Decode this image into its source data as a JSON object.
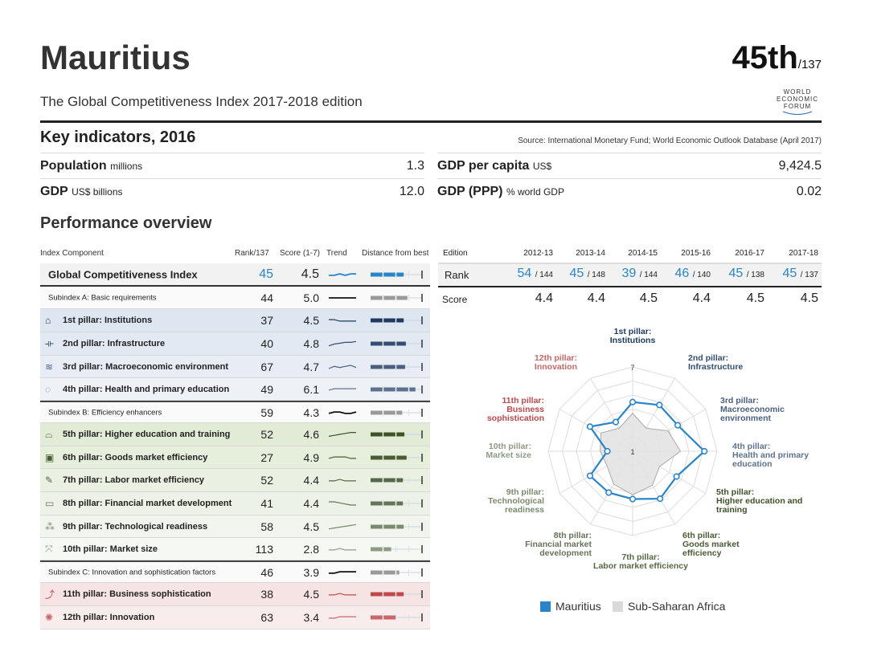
{
  "header": {
    "country": "Mauritius",
    "rank": "45th",
    "rank_total": "/137",
    "edition": "The Global Competitiveness Index 2017-2018 edition",
    "logo_text": [
      "WORLD",
      "ECONOMIC",
      "FORUM"
    ]
  },
  "key_indicators": {
    "title": "Key indicators, 2016",
    "source": "Source: International Monetary Fund; World Economic Outlook Database (April 2017)",
    "items": [
      {
        "label": "Population",
        "unit": "millions",
        "value": "1.3"
      },
      {
        "label": "GDP per capita",
        "unit": "US$",
        "value": "9,424.5"
      },
      {
        "label": "GDP",
        "unit": "US$ billions",
        "value": "12.0"
      },
      {
        "label": "GDP (PPP)",
        "unit": "% world GDP",
        "value": "0.02"
      }
    ]
  },
  "performance": {
    "title": "Performance overview",
    "columns": [
      "Index Component",
      "Rank/137",
      "Score (1-7)",
      "Trend",
      "Distance from best"
    ],
    "rows": [
      {
        "type": "gci",
        "label": "Global Competitiveness Index",
        "rank": "45",
        "score": "4.5",
        "color": "#2a85c8",
        "bg": "#f2f2f2",
        "trend": [
          4.4,
          4.4,
          4.5,
          4.4,
          4.5,
          4.5
        ]
      },
      {
        "type": "sub",
        "label": "Subindex A: Basic requirements",
        "rank": "44",
        "score": "5.0",
        "color": "#9a9a9a",
        "bg": "#fafafa",
        "trend": [
          5.0,
          5.0,
          5.0,
          5.0,
          5.0,
          5.0
        ],
        "line": "#111"
      },
      {
        "type": "pillar",
        "icon": "institutions-icon",
        "glyph": "⌂",
        "label": "1st pillar: Institutions",
        "rank": "37",
        "score": "4.5",
        "color": "#1f3a60",
        "bg": "#dde6f1",
        "trend": [
          4.6,
          4.6,
          4.5,
          4.5,
          4.5,
          4.5
        ]
      },
      {
        "type": "pillar",
        "icon": "infrastructure-icon",
        "glyph": "⟛",
        "label": "2nd pillar: Infrastructure",
        "rank": "40",
        "score": "4.8",
        "color": "#344d73",
        "bg": "#e2e9f3",
        "trend": [
          4.3,
          4.5,
          4.6,
          4.7,
          4.7,
          4.8
        ]
      },
      {
        "type": "pillar",
        "icon": "macroeconomic-icon",
        "glyph": "≋",
        "label": "3rd pillar: Macroeconomic environment",
        "rank": "67",
        "score": "4.7",
        "color": "#4a5f80",
        "bg": "#e8edf5",
        "trend": [
          4.6,
          4.8,
          4.7,
          4.8,
          4.9,
          4.7
        ]
      },
      {
        "type": "pillar",
        "icon": "health-icon",
        "glyph": "◌",
        "label": "4th pillar: Health and primary education",
        "rank": "49",
        "score": "6.1",
        "color": "#5d7290",
        "bg": "#eef2f7",
        "trend": [
          6.0,
          6.1,
          6.1,
          6.1,
          6.1,
          6.1
        ]
      },
      {
        "type": "sub",
        "label": "Subindex B: Efficiency enhancers",
        "rank": "59",
        "score": "4.3",
        "color": "#9a9a9a",
        "bg": "#fafafa",
        "trend": [
          4.2,
          4.3,
          4.3,
          4.2,
          4.2,
          4.3
        ],
        "line": "#111"
      },
      {
        "type": "pillar",
        "icon": "education-icon",
        "glyph": "⌓",
        "label": "5th pillar: Higher education and training",
        "rank": "52",
        "score": "4.6",
        "color": "#3d5226",
        "bg": "#e2ebd6",
        "trend": [
          4.2,
          4.3,
          4.4,
          4.5,
          4.6,
          4.6
        ]
      },
      {
        "type": "pillar",
        "icon": "goods-market-icon",
        "glyph": "▣",
        "label": "6th pillar: Goods market efficiency",
        "rank": "27",
        "score": "4.9",
        "color": "#485c33",
        "bg": "#e6eedc",
        "trend": [
          4.9,
          5.0,
          5.0,
          5.0,
          4.9,
          4.9
        ]
      },
      {
        "type": "pillar",
        "icon": "labor-market-icon",
        "glyph": "✎",
        "label": "7th pillar: Labor market efficiency",
        "rank": "52",
        "score": "4.4",
        "color": "#566845",
        "bg": "#eaf0e2",
        "trend": [
          4.4,
          4.4,
          4.5,
          4.4,
          4.4,
          4.4
        ]
      },
      {
        "type": "pillar",
        "icon": "financial-market-icon",
        "glyph": "▭",
        "label": "8th pillar: Financial market development",
        "rank": "41",
        "score": "4.4",
        "color": "#65745a",
        "bg": "#edf2e7",
        "trend": [
          4.7,
          4.7,
          4.6,
          4.5,
          4.4,
          4.4
        ]
      },
      {
        "type": "pillar",
        "icon": "technology-icon",
        "glyph": "⁂",
        "label": "9th pillar: Technological readiness",
        "rank": "58",
        "score": "4.5",
        "color": "#7b8a6c",
        "bg": "#f1f5ed",
        "trend": [
          4.0,
          4.1,
          4.2,
          4.3,
          4.4,
          4.5
        ]
      },
      {
        "type": "pillar",
        "icon": "market-size-icon",
        "glyph": "⤧",
        "label": "10th pillar: Market size",
        "rank": "113",
        "score": "2.8",
        "color": "#8e9b83",
        "bg": "#f6f8f3",
        "trend": [
          2.8,
          2.8,
          2.9,
          2.8,
          2.8,
          2.8
        ]
      },
      {
        "type": "sub",
        "label": "Subindex C: Innovation and sophistication factors",
        "rank": "46",
        "score": "3.9",
        "color": "#9a9a9a",
        "bg": "#fafafa",
        "trend": [
          3.8,
          3.8,
          3.9,
          3.9,
          3.9,
          3.9
        ],
        "line": "#111"
      },
      {
        "type": "pillar",
        "icon": "business-icon",
        "glyph": "⤴",
        "label": "11th pillar: Business sophistication",
        "rank": "38",
        "score": "4.5",
        "color": "#c0474a",
        "bg": "#f6e3e3",
        "trend": [
          4.5,
          4.5,
          4.6,
          4.5,
          4.5,
          4.5
        ]
      },
      {
        "type": "pillar",
        "icon": "innovation-icon",
        "glyph": "✺",
        "label": "12th pillar: Innovation",
        "rank": "63",
        "score": "3.4",
        "color": "#c96668",
        "bg": "#f9ecec",
        "trend": [
          3.3,
          3.3,
          3.4,
          3.4,
          3.4,
          3.4
        ]
      }
    ]
  },
  "editions": {
    "header": "Edition",
    "columns": [
      "2012-13",
      "2013-14",
      "2014-15",
      "2015-16",
      "2016-17",
      "2017-18"
    ],
    "rank_label": "Rank",
    "ranks": [
      "54",
      "45",
      "39",
      "46",
      "45",
      "45"
    ],
    "totals": [
      "/ 144",
      "/ 148",
      "/ 144",
      "/ 140",
      "/ 138",
      "/ 137"
    ],
    "score_label": "Score",
    "scores": [
      "4.4",
      "4.4",
      "4.5",
      "4.4",
      "4.5",
      "4.5"
    ]
  },
  "chart_data": {
    "type": "radar",
    "range": [
      1,
      7
    ],
    "tick_labels": [
      "1",
      "7"
    ],
    "axes": [
      "1st pillar: Institutions",
      "2nd pillar: Infrastructure",
      "3rd pillar: Macroeconomic environment",
      "4th pillar: Health and primary education",
      "5th pillar: Higher education and training",
      "6th pillar: Goods market efficiency",
      "7th pillar: Labor market efficiency",
      "8th pillar: Financial market development",
      "9th pillar: Technological readiness",
      "10th pillar: Market size",
      "11th pillar: Business sophistication",
      "12th pillar: Innovation"
    ],
    "axis_colors": [
      "#1f3a60",
      "#344d73",
      "#4a5f80",
      "#5d7290",
      "#3d5226",
      "#485c33",
      "#566845",
      "#65745a",
      "#7b8a6c",
      "#8e9b83",
      "#c0474a",
      "#c96668"
    ],
    "series": [
      {
        "name": "Mauritius",
        "color": "#2a85c8",
        "values": [
          4.5,
          4.8,
          4.7,
          6.1,
          4.6,
          4.9,
          4.4,
          4.4,
          4.5,
          2.8,
          4.5,
          3.4
        ]
      },
      {
        "name": "Sub-Saharan Africa",
        "color": "#d9d9d9",
        "values": [
          3.7,
          2.9,
          3.9,
          4.4,
          3.2,
          3.8,
          4.1,
          3.7,
          3.1,
          3.3,
          3.6,
          2.9
        ]
      }
    ]
  }
}
